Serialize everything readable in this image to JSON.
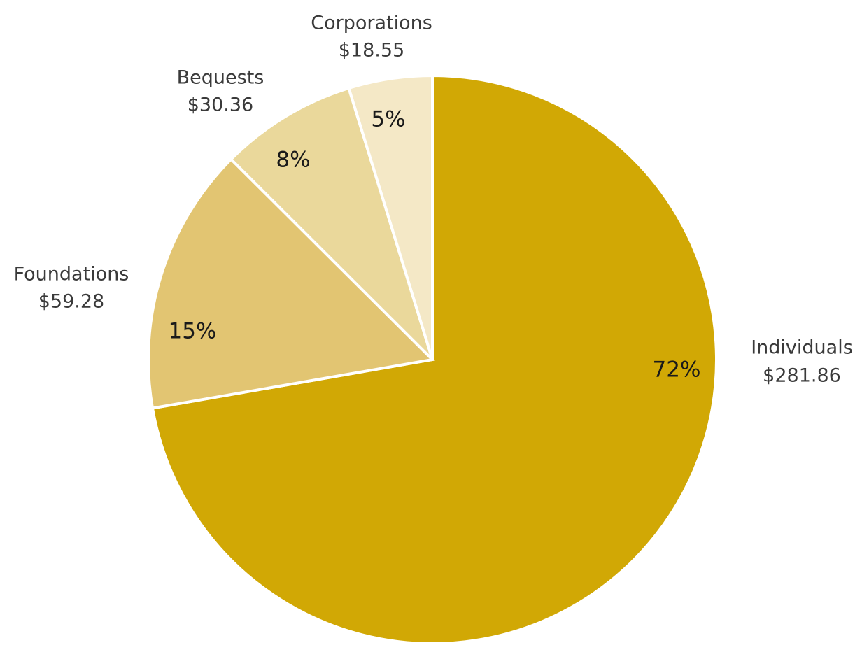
{
  "chart_data": {
    "type": "pie",
    "start_angle_deg": 0,
    "direction": "clockwise",
    "slices": [
      {
        "label": "Individuals",
        "value_label": "$281.86",
        "value": 281.86,
        "percent_label": "72%",
        "color": "#d1a805"
      },
      {
        "label": "Foundations",
        "value_label": "$59.28",
        "value": 59.28,
        "percent_label": "15%",
        "color": "#e2c572"
      },
      {
        "label": "Bequests",
        "value_label": "$30.36",
        "value": 30.36,
        "percent_label": "8%",
        "color": "#ead89b"
      },
      {
        "label": "Corporations",
        "value_label": "$18.55",
        "value": 18.55,
        "percent_label": "5%",
        "color": "#f4e8c6"
      }
    ]
  }
}
